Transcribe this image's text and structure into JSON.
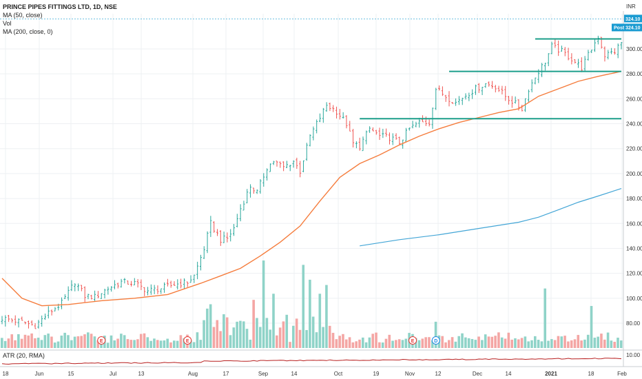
{
  "header": {
    "title": "PRINCE PIPES FITTINGS LTD, 1D, NSE",
    "indicators": [
      "MA (50, close)",
      "Vol",
      "MA (200, close, 0)"
    ],
    "currency": "INR",
    "price_tag": "324.10",
    "post_label": "Post",
    "post_value": "324.10"
  },
  "atr": {
    "label": "ATR (20, RMA)",
    "tick": "10.00"
  },
  "colors": {
    "up": "#26a69a",
    "down": "#ef5350",
    "vol_up": "#8fd3c8",
    "vol_down": "#f4a6a4",
    "ma50": "#f57c3c",
    "ma200": "#42a5d6",
    "trendline": "#1b9e8a",
    "price_tag": "#1a9bd1",
    "atr": "#b71c1c"
  },
  "chart_data": {
    "type": "candlestick",
    "title": "PRINCE PIPES FITTINGS LTD, 1D, NSE",
    "ylim": [
      60,
      330
    ],
    "y_ticks": [
      80,
      100,
      120,
      140,
      160,
      180,
      200,
      220,
      240,
      260,
      280,
      300
    ],
    "x_ticks": [
      "18",
      "Jun",
      "15",
      "Jul",
      "13",
      "Aug",
      "17",
      "Sep",
      "14",
      "Oct",
      "19",
      "Nov",
      "12",
      "Dec",
      "14",
      "2021",
      "18",
      "Feb"
    ],
    "anchors": [
      {
        "t": 0,
        "v": 84
      },
      {
        "t": 6,
        "v": 81
      },
      {
        "t": 10,
        "v": 78
      },
      {
        "t": 14,
        "v": 88
      },
      {
        "t": 18,
        "v": 96
      },
      {
        "t": 22,
        "v": 113
      },
      {
        "t": 25,
        "v": 102
      },
      {
        "t": 28,
        "v": 101
      },
      {
        "t": 32,
        "v": 108
      },
      {
        "t": 36,
        "v": 113
      },
      {
        "t": 40,
        "v": 112
      },
      {
        "t": 44,
        "v": 106
      },
      {
        "t": 48,
        "v": 108
      },
      {
        "t": 52,
        "v": 111
      },
      {
        "t": 56,
        "v": 113
      },
      {
        "t": 58,
        "v": 118
      },
      {
        "t": 61,
        "v": 140
      },
      {
        "t": 63,
        "v": 160
      },
      {
        "t": 66,
        "v": 147
      },
      {
        "t": 68,
        "v": 148
      },
      {
        "t": 70,
        "v": 156
      },
      {
        "t": 72,
        "v": 172
      },
      {
        "t": 75,
        "v": 190
      },
      {
        "t": 77,
        "v": 185
      },
      {
        "t": 80,
        "v": 205
      },
      {
        "t": 82,
        "v": 210
      },
      {
        "t": 85,
        "v": 205
      },
      {
        "t": 88,
        "v": 210
      },
      {
        "t": 90,
        "v": 202
      },
      {
        "t": 93,
        "v": 230
      },
      {
        "t": 96,
        "v": 245
      },
      {
        "t": 98,
        "v": 255
      },
      {
        "t": 101,
        "v": 250
      },
      {
        "t": 104,
        "v": 240
      },
      {
        "t": 106,
        "v": 224
      },
      {
        "t": 108,
        "v": 222
      },
      {
        "t": 111,
        "v": 236
      },
      {
        "t": 114,
        "v": 230
      },
      {
        "t": 117,
        "v": 229
      },
      {
        "t": 120,
        "v": 225
      },
      {
        "t": 123,
        "v": 236
      },
      {
        "t": 126,
        "v": 241
      },
      {
        "t": 129,
        "v": 241
      },
      {
        "t": 131,
        "v": 268
      },
      {
        "t": 134,
        "v": 262
      },
      {
        "t": 137,
        "v": 257
      },
      {
        "t": 140,
        "v": 263
      },
      {
        "t": 143,
        "v": 268
      },
      {
        "t": 146,
        "v": 272
      },
      {
        "t": 149,
        "v": 270
      },
      {
        "t": 152,
        "v": 262
      },
      {
        "t": 155,
        "v": 256
      },
      {
        "t": 157,
        "v": 252
      },
      {
        "t": 159,
        "v": 268
      },
      {
        "t": 162,
        "v": 282
      },
      {
        "t": 164,
        "v": 290
      },
      {
        "t": 166,
        "v": 302
      },
      {
        "t": 169,
        "v": 298
      },
      {
        "t": 172,
        "v": 292
      },
      {
        "t": 175,
        "v": 285
      },
      {
        "t": 178,
        "v": 300
      },
      {
        "t": 180,
        "v": 310
      },
      {
        "t": 182,
        "v": 295
      },
      {
        "t": 185,
        "v": 298
      },
      {
        "t": 187,
        "v": 305
      }
    ],
    "ma50": [
      [
        0,
        116
      ],
      [
        6,
        100
      ],
      [
        12,
        94
      ],
      [
        20,
        95
      ],
      [
        30,
        98
      ],
      [
        40,
        100
      ],
      [
        50,
        103
      ],
      [
        60,
        112
      ],
      [
        66,
        118
      ],
      [
        72,
        124
      ],
      [
        78,
        134
      ],
      [
        84,
        145
      ],
      [
        90,
        158
      ],
      [
        96,
        178
      ],
      [
        102,
        197
      ],
      [
        108,
        208
      ],
      [
        114,
        215
      ],
      [
        120,
        223
      ],
      [
        126,
        230
      ],
      [
        132,
        236
      ],
      [
        138,
        241
      ],
      [
        144,
        245
      ],
      [
        150,
        249
      ],
      [
        156,
        252
      ],
      [
        162,
        262
      ],
      [
        168,
        268
      ],
      [
        174,
        274
      ],
      [
        180,
        278
      ],
      [
        187,
        282
      ]
    ],
    "ma200": [
      [
        108,
        142
      ],
      [
        120,
        147
      ],
      [
        132,
        151
      ],
      [
        144,
        156
      ],
      [
        156,
        161
      ],
      [
        162,
        165
      ],
      [
        168,
        171
      ],
      [
        174,
        177
      ],
      [
        180,
        182
      ],
      [
        187,
        188
      ]
    ],
    "volume_spikes": [
      {
        "t": 62,
        "v": 0.45
      },
      {
        "t": 63,
        "v": 0.5
      },
      {
        "t": 79,
        "v": 1.0
      },
      {
        "t": 76,
        "v": 0.55
      },
      {
        "t": 91,
        "v": 0.95
      },
      {
        "t": 93,
        "v": 0.78
      },
      {
        "t": 96,
        "v": 0.62
      },
      {
        "t": 98,
        "v": 0.72
      },
      {
        "t": 82,
        "v": 0.62
      },
      {
        "t": 131,
        "v": 0.3
      },
      {
        "t": 164,
        "v": 0.68
      },
      {
        "t": 178,
        "v": 0.48
      }
    ],
    "earnings_markers": [
      {
        "t": 30,
        "label": "E"
      },
      {
        "t": 56,
        "label": "E"
      },
      {
        "t": 124,
        "label": "E"
      },
      {
        "t": 131,
        "label": "D"
      }
    ],
    "horizontal_levels": [
      {
        "v": 244,
        "from": 108,
        "to": 187
      },
      {
        "v": 282,
        "from": 135,
        "to": 187
      },
      {
        "v": 308,
        "from": 161,
        "to": 187
      }
    ],
    "last_price": 324.1
  }
}
